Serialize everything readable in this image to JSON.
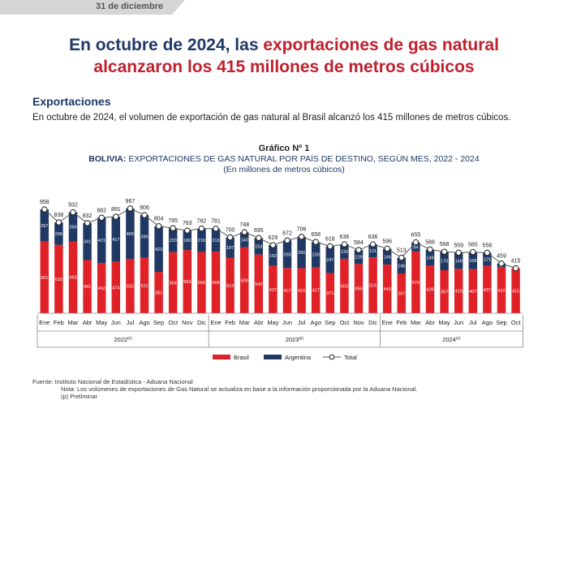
{
  "header": {
    "date": "31 de diciembre"
  },
  "headline": {
    "line1_plain": "En octubre de 2024, las ",
    "line1_highlight": "exportaciones de gas natural",
    "line2_highlight": "alcanzaron los 415 millones de metros cúbicos"
  },
  "section_title": "Exportaciones",
  "paragraph": "En octubre de 2024, el volumen de exportación de gas natural al Brasil alcanzó los 415 millones de metros cúbicos.",
  "chart_data": {
    "type": "bar",
    "label": "Gráfico Nº 1",
    "title_bold": "BOLIVIA:",
    "title": "EXPORTACIONES DE GAS NATURAL POR PAÍS DE DESTINO, SEGÚN MES, 2022 - 2024",
    "subtitle": "(En millones de metros cúbicos)",
    "categories": [
      "Ene",
      "Feb",
      "Mar",
      "Abr",
      "May",
      "Jun",
      "Jul",
      "Ago",
      "Sep",
      "Oct",
      "Nov",
      "Dic",
      "Ene",
      "Feb",
      "Mar",
      "Abr",
      "May",
      "Jun",
      "Jul",
      "Ago",
      "Sep",
      "Oct",
      "Nov",
      "Dic",
      "Ene",
      "Feb",
      "Mar",
      "Abr",
      "May",
      "Jun",
      "Jul",
      "Ago",
      "Sep",
      "Oct"
    ],
    "year_groups": [
      {
        "label": "2022",
        "sup": "(p)",
        "count": 12
      },
      {
        "label": "2023",
        "sup": "(p)",
        "count": 12
      },
      {
        "label": "2024",
        "sup": "(p)",
        "count": 10
      }
    ],
    "series": [
      {
        "name": "Brasil",
        "color": "#e02127",
        "values": [
          661,
          632,
          663,
          491,
          462,
          474,
          502,
          511,
          381,
          564,
          583,
          566,
          568,
          513,
          608,
          542,
          437,
          417,
          416,
          427,
          371,
          503,
          455,
          515,
          449,
          367,
          570,
          439,
          397,
          410,
          407,
          437,
          422,
          415
        ]
      },
      {
        "name": "Argentina",
        "color": "#1f3864",
        "values": [
          297,
          206,
          269,
          341,
          421,
          417,
          465,
          395,
          423,
          220,
          180,
          216,
          213,
          187,
          140,
          153,
          192,
          255,
          290,
          230,
          247,
          133,
          129,
          121,
          146,
          146,
          84,
          149,
          170,
          149,
          158,
          121,
          37,
          0
        ]
      },
      {
        "name": "Total",
        "color": "#555555",
        "type": "line",
        "values": [
          958,
          838,
          932,
          832,
          882,
          891,
          967,
          906,
          804,
          785,
          763,
          782,
          781,
          700,
          748,
          695,
          629,
          672,
          706,
          658,
          618,
          636,
          584,
          636,
          596,
          513,
          655,
          588,
          568,
          559,
          565,
          558,
          459,
          415
        ]
      }
    ],
    "legend": [
      "Brasil",
      "Argentina",
      "Total"
    ],
    "ylim": [
      0,
      1000
    ]
  },
  "footnotes": {
    "source": "Fuente: Instituto Nacional de Estadística - Aduana Nacional",
    "note": "Nota:  Los volúmenes de exportaciones de Gas Natural se actualiza en base a la información proporcionada por la Aduana Nacional.",
    "prelim": "(p) Preliminar"
  }
}
